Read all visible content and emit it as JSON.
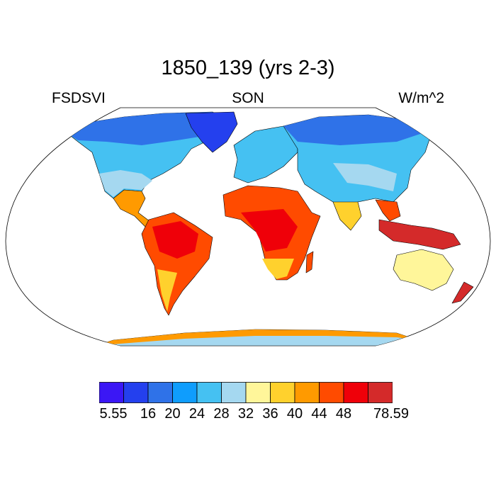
{
  "title": "1850_139 (yrs 2-3)",
  "variable": "FSDSVI",
  "season": "SON",
  "units": "W/m^2",
  "colorbar": {
    "colors": [
      "#3b17f5",
      "#2440ee",
      "#2f72e8",
      "#0f9dfd",
      "#45c1f2",
      "#a5d8f0",
      "#fff69a",
      "#ffd12d",
      "#ff9a00",
      "#ff4b00",
      "#ef0009",
      "#d42a2a"
    ],
    "labels": [
      "5.55",
      "16",
      "20",
      "24",
      "28",
      "32",
      "36",
      "40",
      "44",
      "48",
      "78.59"
    ]
  }
}
